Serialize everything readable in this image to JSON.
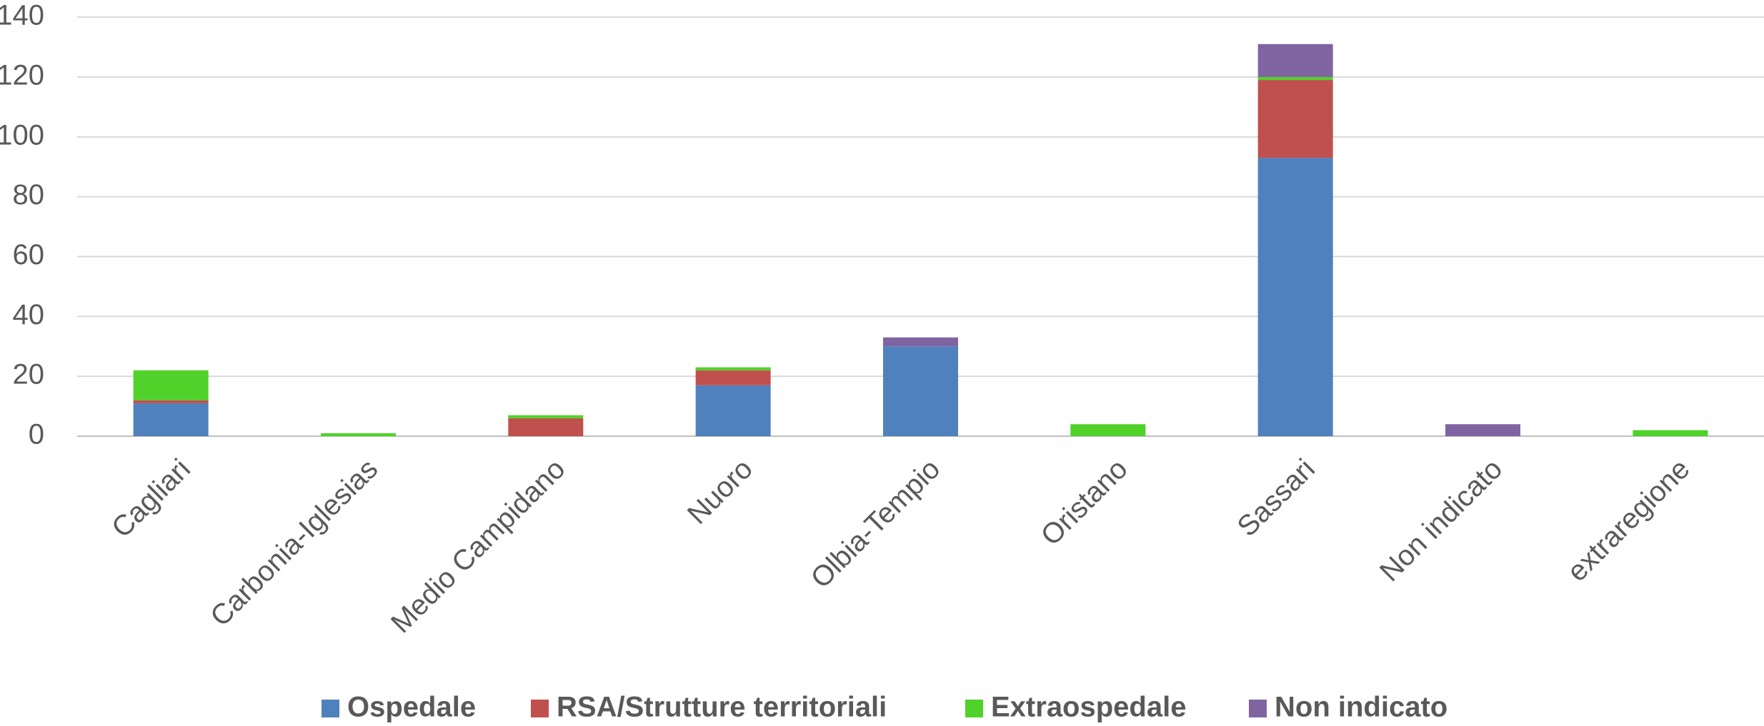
{
  "chart_data": {
    "type": "stacked_bar",
    "categories": [
      "Cagliari",
      "Carbonia-Iglesias",
      "Medio Campidano",
      "Nuoro",
      "Olbia-Tempio",
      "Oristano",
      "Sassari",
      "Non indicato",
      "extraregione"
    ],
    "series": [
      {
        "name": "Ospedale",
        "color": "#4f81bd",
        "values": [
          11,
          0,
          0,
          17,
          30,
          0,
          93,
          0,
          0
        ]
      },
      {
        "name": "RSA/Strutture territoriali",
        "color": "#c0504d",
        "values": [
          1,
          0,
          6,
          5,
          0,
          0,
          26,
          0,
          0
        ]
      },
      {
        "name": "Extraospedale",
        "color": "#50d22b",
        "values": [
          10,
          1,
          1,
          1,
          0,
          4,
          1,
          0,
          2
        ]
      },
      {
        "name": "Non indicato",
        "color": "#8064a2",
        "values": [
          0,
          0,
          0,
          0,
          3,
          0,
          11,
          4,
          0
        ]
      }
    ],
    "ylim": [
      0,
      140
    ],
    "yticks": [
      0,
      20,
      40,
      60,
      80,
      100,
      120,
      140
    ],
    "grid": true,
    "legend": "bottom"
  }
}
